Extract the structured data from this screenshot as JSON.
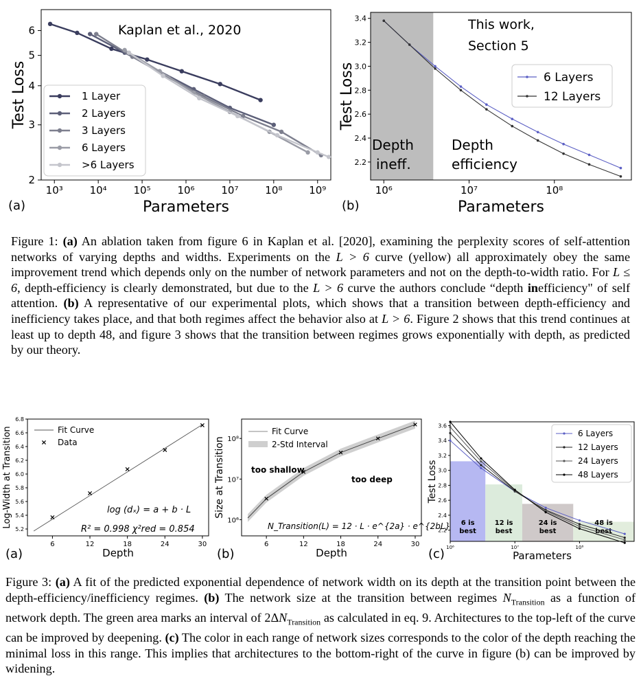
{
  "figure1": {
    "panel_a": {
      "panel_label": "(a)",
      "annotation": "Kaplan et al., 2020",
      "xlabel": "Parameters",
      "ylabel": "Test Loss",
      "xticks": [
        "10³",
        "10⁴",
        "10⁵",
        "10⁶",
        "10⁷",
        "10⁸",
        "10⁹"
      ],
      "yticks": [
        "2",
        "3",
        "4",
        "5",
        "6"
      ],
      "legend": [
        "1 Layer",
        "2 Layers",
        "3 Layers",
        "6 Layers",
        ">6 Layers"
      ]
    },
    "panel_b": {
      "panel_label": "(b)",
      "annotation_line1": "This work,",
      "annotation_line2": "Section 5",
      "region_left_line1": "Depth",
      "region_left_line2": "ineff.",
      "region_right_line1": "Depth",
      "region_right_line2": "efficiency",
      "xlabel": "Parameters",
      "ylabel": "Test Loss",
      "xticks": [
        "10⁶",
        "10⁷",
        "10⁸"
      ],
      "yticks": [
        "2.2",
        "2.4",
        "2.6",
        "2.8",
        "3.0",
        "3.2",
        "3.4"
      ],
      "legend": [
        "6  Layers",
        "12 Layers"
      ]
    },
    "caption": {
      "label": "Figure 1:",
      "a_marker": "(a)",
      "a_text": "An ablation taken from figure 6 in Kaplan et al. [2020], examining the perplexity scores of self-attention networks of varying depths and widths. Experiments on the",
      "a_math1": "L > 6",
      "a_text2": "curve (yellow) all approximately obey the same improvement trend which depends only on the number of network parameters and not on the depth-to-width ratio. For",
      "a_math2": "L ≤ 6",
      "a_text3": ", depth-efficiency is clearly demonstrated, but due to the",
      "a_math3": "L > 6",
      "a_text4": "curve the authors conclude “depth",
      "a_bold": "in",
      "a_text5": "efficiency\" of self attention.",
      "b_marker": "(b)",
      "b_text": "A representative of our experimental plots, which shows that a transition between depth-efficiency and inefficiency takes place, and that both regimes affect the behavior also at",
      "b_math": "L > 6",
      "b_text2": ". Figure 2 shows that this trend continues at least up to depth 48, and figure 3 shows that the transition between regimes grows exponentially with depth, as predicted by our theory."
    }
  },
  "figure3": {
    "panel_a": {
      "panel_label": "(a)",
      "xlabel": "Depth",
      "ylabel": "Log-Width at Transition",
      "xticks": [
        "6",
        "12",
        "18",
        "24",
        "30"
      ],
      "yticks": [
        "5.2",
        "5.4",
        "5.6",
        "5.8",
        "6.0",
        "6.2",
        "6.4",
        "6.6",
        "6.8"
      ],
      "legend": [
        "Fit Curve",
        "Data"
      ],
      "equation": "log (dₓ) = a + b · L",
      "stats": "R² = 0.998  χ²red = 0.854"
    },
    "panel_b": {
      "panel_label": "(b)",
      "xlabel": "Depth",
      "ylabel": "Size at Transition",
      "xticks": [
        "6",
        "12",
        "18",
        "24",
        "30"
      ],
      "yticks": [
        "10⁶",
        "10⁷",
        "10⁸"
      ],
      "legend": [
        "Fit Curve",
        "2-Std Interval"
      ],
      "label_shallow": "too shallow",
      "label_deep": "too deep",
      "equation": "N_Transition(L) = 12 · L · e^{2a} · e^{2bL}"
    },
    "panel_c": {
      "panel_label": "(c)",
      "xlabel": "Parameters",
      "ylabel": "Test Loss",
      "xticks": [
        "10⁶",
        "10⁷",
        "10⁸"
      ],
      "yticks": [
        "2.2",
        "2.4",
        "2.6",
        "2.8",
        "3.0",
        "3.2",
        "3.4",
        "3.6"
      ],
      "legend": [
        "6  Layers",
        "12 Layers",
        "24 Layers",
        "48 Layers"
      ],
      "regions": [
        "6 is best",
        "12 is best",
        "24 is best",
        "48 is best"
      ],
      "region_colors": [
        "#b6b8f2",
        "#dcebdc",
        "#cfc9c9",
        "#e2eddd"
      ]
    },
    "caption": {
      "label": "Figure 3:",
      "a_marker": "(a)",
      "a_text": "A fit of the predicted exponential dependence of network width on its depth at the transition point between the depth-efficiency/inefficiency regimes.",
      "b_marker": "(b)",
      "b_text": "The network size at the transition between regimes",
      "b_math": "N",
      "b_sub": "Transition",
      "b_text2": "as a function of network depth. The green area marks an interval of 2Δ",
      "b_math2": "N",
      "b_sub2": "Transition",
      "b_text3": "as calculated in eq. 9. Architectures to the top-left of the curve can be improved by deepening.",
      "c_marker": "(c)",
      "c_text": "The color in each range of network sizes corresponds to the color of the depth reaching the minimal loss in this range. This implies that architectures to the bottom-right of the curve in figure (b) can be improved by widening."
    }
  },
  "chart_data": [
    {
      "type": "line",
      "title": "",
      "xlabel": "Parameters",
      "ylabel": "Test Loss",
      "xscale": "log",
      "yscale": "log",
      "xlim": [
        500,
        2000000000
      ],
      "ylim": [
        2,
        7
      ],
      "grid": false,
      "legend_position": "bottom-left",
      "series": [
        {
          "name": "1 Layer",
          "color": "#3a3d5e",
          "x": [
            800,
            3300,
            20000,
            130000,
            800000,
            6000000,
            50000000
          ],
          "y": [
            6.3,
            5.9,
            5.25,
            4.85,
            4.45,
            4.05,
            3.6
          ]
        },
        {
          "name": "2 Layers",
          "color": "#5c5f78",
          "x": [
            6500,
            40000,
            250000,
            1500000,
            10000000,
            100000000
          ],
          "y": [
            5.85,
            5.1,
            4.45,
            3.9,
            3.4,
            3.0
          ]
        },
        {
          "name": "3 Layers",
          "color": "#7d7f8e",
          "x": [
            9000,
            60000,
            400000,
            2500000,
            20000000,
            150000000,
            1200000000
          ],
          "y": [
            5.85,
            4.95,
            4.25,
            3.7,
            3.2,
            2.85,
            2.4
          ]
        },
        {
          "name": "6 Layers",
          "color": "#9a9ca6",
          "x": [
            40000,
            250000,
            1500000,
            10000000,
            80000000,
            600000000
          ],
          "y": [
            5.2,
            4.45,
            3.8,
            3.3,
            2.85,
            2.45
          ]
        },
        {
          "name": ">6 Layers",
          "color": "#c4c5cc",
          "x": [
            50000,
            300000,
            2000000,
            15000000,
            120000000,
            1000000000,
            1800000000
          ],
          "y": [
            5.1,
            4.3,
            3.65,
            3.2,
            2.78,
            2.45,
            2.37
          ]
        }
      ]
    },
    {
      "type": "line",
      "title": "",
      "xlabel": "Parameters",
      "ylabel": "Test Loss",
      "xscale": "log",
      "xlim": [
        700000,
        800000000
      ],
      "ylim": [
        2.05,
        3.45
      ],
      "grid": false,
      "legend_position": "top-right",
      "series": [
        {
          "name": "6  Layers",
          "color": "#5b5fc4",
          "x": [
            1000000,
            2000000,
            4000000,
            8000000,
            16000000,
            32000000,
            64000000,
            128000000,
            256000000,
            600000000
          ],
          "y": [
            3.38,
            3.18,
            3.0,
            2.83,
            2.68,
            2.56,
            2.45,
            2.35,
            2.26,
            2.15
          ]
        },
        {
          "name": "12 Layers",
          "color": "#333333",
          "x": [
            1000000,
            2000000,
            4000000,
            8000000,
            16000000,
            32000000,
            64000000,
            128000000,
            256000000,
            600000000
          ],
          "y": [
            3.38,
            3.18,
            2.98,
            2.8,
            2.64,
            2.5,
            2.38,
            2.27,
            2.18,
            2.08
          ]
        }
      ]
    },
    {
      "type": "scatter",
      "title": "",
      "xlabel": "Depth",
      "ylabel": "Log-Width at Transition",
      "xlim": [
        2,
        31
      ],
      "ylim": [
        5.1,
        6.8
      ],
      "legend_position": "top-left",
      "series": [
        {
          "name": "Fit Curve",
          "x": [
            3,
            30
          ],
          "y": [
            5.17,
            6.72
          ]
        },
        {
          "name": "Data",
          "x": [
            6,
            12,
            18,
            24,
            30
          ],
          "y": [
            5.37,
            5.72,
            6.07,
            6.35,
            6.71
          ]
        }
      ]
    },
    {
      "type": "line",
      "title": "",
      "xlabel": "Depth",
      "ylabel": "Size at Transition",
      "yscale": "log",
      "xlim": [
        2,
        31
      ],
      "ylim": [
        400000,
        300000000
      ],
      "legend_position": "top-left",
      "series": [
        {
          "name": "Fit Curve",
          "x": [
            3,
            6,
            12,
            18,
            24,
            30
          ],
          "y": [
            1100000,
            3300000,
            15000000,
            45000000,
            100000000,
            220000000
          ]
        }
      ]
    },
    {
      "type": "line",
      "title": "",
      "xlabel": "Parameters",
      "ylabel": "Test Loss",
      "xscale": "log",
      "xlim": [
        1000000,
        700000000
      ],
      "ylim": [
        2.05,
        3.65
      ],
      "legend_position": "top-right",
      "series": [
        {
          "name": "6  Layers",
          "color": "#5b5fc4",
          "x": [
            1000000,
            3000000,
            10000000,
            30000000,
            100000000,
            500000000
          ],
          "y": [
            3.4,
            3.03,
            2.72,
            2.5,
            2.33,
            2.15
          ]
        },
        {
          "name": "12 Layers",
          "color": "#222222",
          "x": [
            1000000,
            3000000,
            10000000,
            30000000,
            100000000,
            500000000
          ],
          "y": [
            3.5,
            3.07,
            2.72,
            2.47,
            2.28,
            2.1
          ]
        },
        {
          "name": "24 Layers",
          "color": "#555555",
          "x": [
            1000000,
            3000000,
            10000000,
            30000000,
            100000000,
            500000000
          ],
          "y": [
            3.58,
            3.12,
            2.73,
            2.46,
            2.25,
            2.07
          ]
        },
        {
          "name": "48 Layers",
          "color": "#000000",
          "x": [
            1000000,
            3000000,
            10000000,
            30000000,
            100000000,
            500000000
          ],
          "y": [
            3.65,
            3.16,
            2.74,
            2.44,
            2.22,
            2.03
          ]
        }
      ]
    }
  ]
}
